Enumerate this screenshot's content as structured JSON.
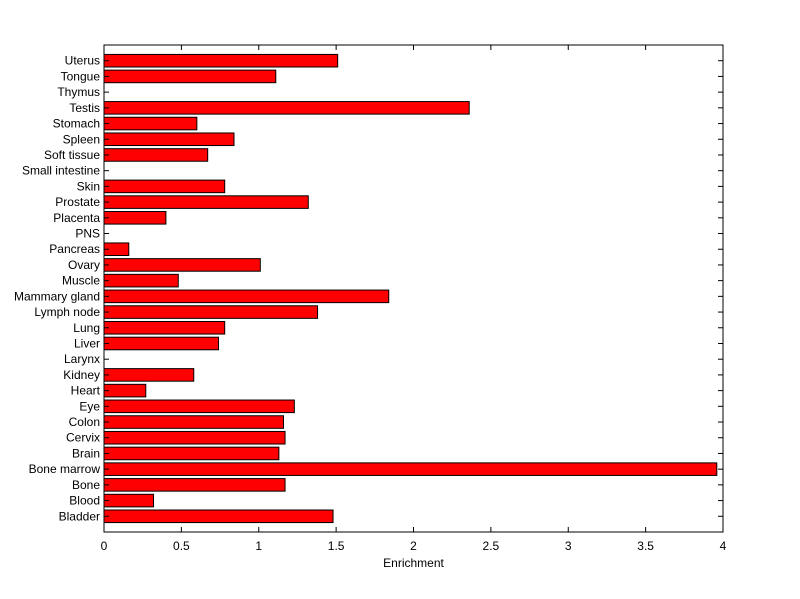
{
  "chart_data": {
    "type": "bar",
    "orientation": "horizontal",
    "xlabel": "Enrichment",
    "ylabel": "",
    "title": "",
    "xlim": [
      0,
      4
    ],
    "xticks": [
      "0",
      "0.5",
      "1",
      "1.5",
      "2",
      "2.5",
      "3",
      "3.5",
      "4"
    ],
    "grid": false,
    "bar_color": "#ff0000",
    "bar_edge_color": "#000000",
    "categories": [
      "Bladder",
      "Blood",
      "Bone",
      "Bone marrow",
      "Brain",
      "Cervix",
      "Colon",
      "Eye",
      "Heart",
      "Kidney",
      "Larynx",
      "Liver",
      "Lung",
      "Lymph node",
      "Mammary gland",
      "Muscle",
      "Ovary",
      "Pancreas",
      "PNS",
      "Placenta",
      "Prostate",
      "Skin",
      "Small intestine",
      "Soft tissue",
      "Spleen",
      "Stomach",
      "Testis",
      "Thymus",
      "Tongue",
      "Uterus"
    ],
    "values": [
      1.48,
      0.32,
      1.17,
      3.96,
      1.13,
      1.17,
      1.16,
      1.23,
      0.27,
      0.58,
      0,
      0.74,
      0.78,
      1.38,
      1.84,
      0.48,
      1.01,
      0.16,
      0,
      0.4,
      1.32,
      0.78,
      0,
      0.67,
      0.84,
      0.6,
      2.36,
      0,
      1.11,
      1.51
    ]
  }
}
